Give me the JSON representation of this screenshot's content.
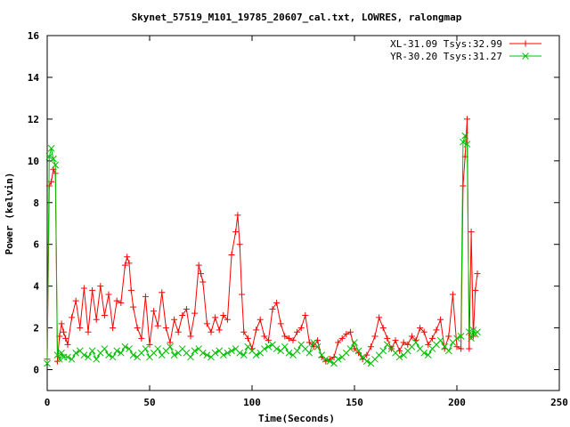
{
  "chart_data": {
    "type": "line",
    "title": "Skynet_57519_M101_19785_20607_cal.txt, LOWRES, ralongmap",
    "xlabel": "Time(Seconds)",
    "ylabel": "Power (kelvin)",
    "xlim": [
      0,
      250
    ],
    "ylim": [
      -1,
      16
    ],
    "xticks": [
      "0",
      "50",
      "100",
      "150",
      "200",
      "250"
    ],
    "yticks": [
      "0",
      "2",
      "4",
      "6",
      "8",
      "10",
      "12",
      "14",
      "16"
    ],
    "grid": false,
    "legend_position": "top-right",
    "series": [
      {
        "name": "XL-31.09 Tsys:32.99",
        "color": "#ff0000",
        "marker": "plus",
        "x": [
          0,
          1,
          2,
          3,
          4,
          5,
          6,
          7,
          8,
          9,
          10,
          12,
          14,
          16,
          18,
          20,
          22,
          24,
          26,
          28,
          30,
          32,
          34,
          36,
          38,
          39,
          40,
          41,
          42,
          44,
          46,
          48,
          50,
          52,
          54,
          56,
          58,
          60,
          62,
          64,
          66,
          68,
          70,
          72,
          74,
          75,
          76,
          78,
          80,
          82,
          84,
          86,
          88,
          90,
          92,
          93,
          94,
          95,
          96,
          98,
          100,
          102,
          104,
          106,
          108,
          110,
          112,
          114,
          116,
          118,
          120,
          122,
          124,
          126,
          128,
          130,
          132,
          134,
          136,
          138,
          140,
          142,
          144,
          146,
          148,
          150,
          152,
          154,
          156,
          158,
          160,
          162,
          164,
          166,
          168,
          170,
          172,
          174,
          176,
          178,
          180,
          182,
          184,
          186,
          188,
          190,
          192,
          194,
          196,
          198,
          200,
          202,
          203,
          204,
          205,
          206,
          207,
          208,
          209,
          210
        ],
        "y": [
          0.5,
          8.8,
          9.0,
          9.6,
          9.4,
          0.4,
          1.6,
          2.2,
          1.8,
          1.5,
          1.2,
          2.5,
          3.3,
          2.0,
          3.9,
          1.8,
          3.8,
          2.4,
          4.0,
          2.6,
          3.6,
          2.0,
          3.3,
          3.2,
          5.0,
          5.4,
          5.1,
          3.8,
          3.0,
          2.0,
          1.5,
          3.5,
          1.2,
          2.8,
          2.1,
          3.7,
          2.0,
          1.3,
          2.4,
          1.8,
          2.6,
          2.9,
          1.6,
          2.7,
          5.0,
          4.6,
          4.2,
          2.2,
          1.8,
          2.5,
          1.9,
          2.6,
          2.4,
          5.5,
          6.6,
          7.4,
          6.0,
          3.6,
          1.8,
          1.5,
          1.0,
          1.9,
          2.4,
          1.6,
          1.4,
          2.9,
          3.2,
          2.2,
          1.6,
          1.5,
          1.4,
          1.8,
          2.0,
          2.6,
          1.3,
          1.1,
          1.4,
          0.6,
          0.4,
          0.5,
          0.6,
          1.3,
          1.5,
          1.7,
          1.8,
          1.0,
          0.8,
          0.5,
          0.7,
          1.1,
          1.6,
          2.5,
          2.0,
          1.5,
          1.0,
          1.4,
          0.9,
          1.3,
          1.2,
          1.6,
          1.4,
          2.0,
          1.8,
          1.2,
          1.5,
          1.9,
          2.4,
          1.0,
          1.6,
          3.6,
          1.1,
          1.0,
          8.8,
          10.2,
          12.0,
          1.0,
          6.6,
          1.6,
          3.8,
          4.6
        ]
      },
      {
        "name": "YR-30.20 Tsys:31.27",
        "color": "#00c000",
        "marker": "cross",
        "x": [
          0,
          1,
          2,
          3,
          4,
          5,
          6,
          7,
          8,
          10,
          12,
          14,
          16,
          18,
          20,
          22,
          24,
          26,
          28,
          30,
          32,
          34,
          36,
          38,
          40,
          42,
          44,
          46,
          48,
          50,
          52,
          54,
          56,
          58,
          60,
          62,
          64,
          66,
          68,
          70,
          72,
          74,
          76,
          78,
          80,
          82,
          84,
          86,
          88,
          90,
          92,
          94,
          96,
          98,
          100,
          102,
          104,
          106,
          108,
          110,
          112,
          114,
          116,
          118,
          120,
          122,
          124,
          126,
          128,
          130,
          132,
          134,
          136,
          138,
          140,
          142,
          144,
          146,
          148,
          150,
          152,
          154,
          156,
          158,
          160,
          162,
          164,
          166,
          168,
          170,
          172,
          174,
          176,
          178,
          180,
          182,
          184,
          186,
          188,
          190,
          192,
          194,
          196,
          198,
          200,
          202,
          203,
          204,
          205,
          206,
          207,
          208,
          209,
          210
        ],
        "y": [
          0.3,
          10.2,
          10.6,
          10.1,
          9.8,
          0.7,
          0.5,
          0.8,
          0.6,
          0.6,
          0.5,
          0.8,
          0.9,
          0.7,
          0.6,
          0.9,
          0.5,
          0.8,
          1.0,
          0.7,
          0.6,
          0.9,
          0.8,
          1.1,
          1.0,
          0.7,
          0.6,
          0.8,
          1.0,
          0.6,
          0.8,
          1.0,
          0.7,
          0.9,
          1.1,
          0.7,
          0.8,
          1.0,
          0.8,
          0.6,
          0.9,
          1.0,
          0.8,
          0.7,
          0.6,
          0.8,
          0.9,
          0.7,
          0.8,
          0.9,
          1.0,
          0.8,
          0.7,
          1.1,
          0.9,
          0.7,
          0.8,
          1.0,
          1.1,
          1.2,
          1.0,
          0.9,
          1.1,
          0.8,
          0.7,
          0.9,
          1.2,
          1.0,
          0.8,
          1.3,
          1.1,
          0.7,
          0.5,
          0.4,
          0.3,
          0.5,
          0.6,
          0.8,
          1.0,
          1.3,
          0.9,
          0.6,
          0.4,
          0.3,
          0.5,
          0.7,
          0.9,
          1.2,
          1.0,
          0.8,
          0.6,
          0.7,
          0.9,
          1.1,
          1.3,
          1.0,
          0.8,
          0.7,
          1.0,
          1.2,
          1.4,
          1.1,
          0.9,
          1.3,
          1.5,
          1.6,
          10.9,
          11.2,
          10.8,
          1.8,
          1.5,
          1.9,
          1.7,
          1.8
        ]
      }
    ]
  }
}
